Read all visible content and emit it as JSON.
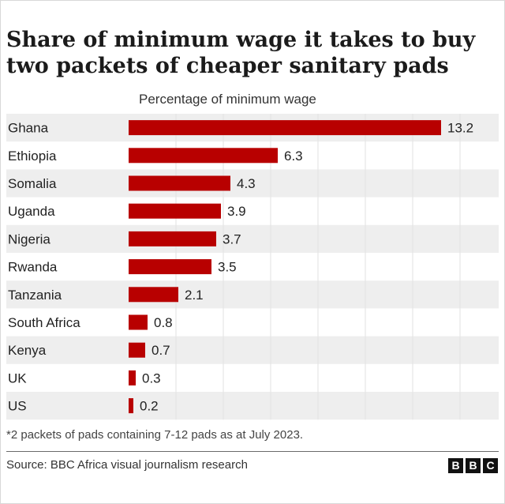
{
  "title": "Share of minimum wage it takes to buy two packets of cheaper sanitary pads",
  "subtitle": "Percentage of minimum wage",
  "footnote": "*2 packets of pads containing 7-12 pads as at July 2023.",
  "source": "Source: BBC Africa visual journalism research",
  "logo": [
    "B",
    "B",
    "C"
  ],
  "colors": {
    "bar": "#b80000",
    "stripe": "#eeeeee",
    "grid": "#e2e2e2",
    "text": "#222222"
  },
  "chart_data": {
    "type": "bar",
    "orientation": "horizontal",
    "title": "Share of minimum wage it takes to buy two packets of cheaper sanitary pads",
    "xlabel": "Percentage of minimum wage",
    "ylabel": "",
    "xlim": [
      0,
      14
    ],
    "grid": true,
    "categories": [
      "Ghana",
      "Ethiopia",
      "Somalia",
      "Uganda",
      "Nigeria",
      "Rwanda",
      "Tanzania",
      "South Africa",
      "Kenya",
      "UK",
      "US"
    ],
    "values": [
      13.2,
      6.3,
      4.3,
      3.9,
      3.7,
      3.5,
      2.1,
      0.8,
      0.7,
      0.3,
      0.2
    ],
    "value_labels": [
      "13.2",
      "6.3",
      "4.3",
      "3.9",
      "3.7",
      "3.5",
      "2.1",
      "0.8",
      "0.7",
      "0.3",
      "0.2"
    ]
  }
}
